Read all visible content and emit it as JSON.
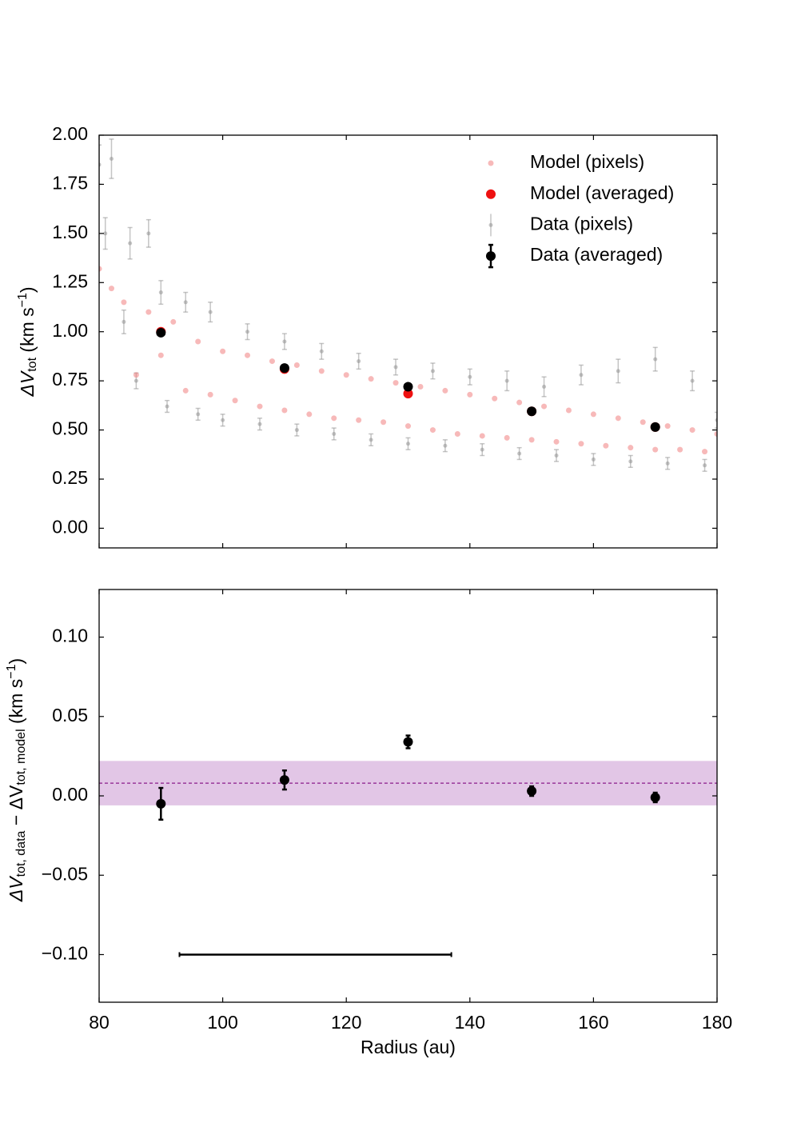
{
  "chart_data": [
    {
      "type": "scatter",
      "ylabel": {
        "main": "ΔV",
        "sub": "tot",
        "unit": " (km s",
        "sup": "−1",
        "close": ")"
      },
      "xlim": [
        80,
        180
      ],
      "ylim": [
        -0.1,
        2.0
      ],
      "xticks": [
        80,
        100,
        120,
        140,
        160,
        180
      ],
      "show_xticklabels": false,
      "yticks": [
        {
          "value": 0,
          "label": "0.00"
        },
        {
          "value": 0.25,
          "label": "0.25"
        },
        {
          "value": 0.5,
          "label": "0.50"
        },
        {
          "value": 0.75,
          "label": "0.75"
        },
        {
          "value": 1.0,
          "label": "1.00"
        },
        {
          "value": 1.25,
          "label": "1.25"
        },
        {
          "value": 1.5,
          "label": "1.50"
        },
        {
          "value": 1.75,
          "label": "1.75"
        },
        {
          "value": 2.0,
          "label": "2.00"
        }
      ],
      "legend": "upper right",
      "series": [
        {
          "name": "Model (pixels)",
          "color": "#f08080",
          "alpha": 0.55,
          "size": 3.5,
          "x": [
            80,
            82,
            84,
            86,
            88,
            90,
            92,
            94,
            96,
            98,
            100,
            102,
            104,
            106,
            108,
            110,
            112,
            114,
            116,
            118,
            120,
            122,
            124,
            126,
            128,
            130,
            132,
            134,
            136,
            138,
            140,
            142,
            144,
            146,
            148,
            150,
            152,
            154,
            156,
            158,
            160,
            162,
            164,
            166,
            168,
            170,
            172,
            174,
            176,
            178,
            180
          ],
          "values": [
            1.32,
            1.22,
            1.15,
            0.78,
            1.1,
            0.88,
            1.05,
            0.7,
            0.95,
            0.68,
            0.9,
            0.65,
            0.88,
            0.62,
            0.85,
            0.6,
            0.83,
            0.58,
            0.8,
            0.56,
            0.78,
            0.55,
            0.76,
            0.54,
            0.74,
            0.52,
            0.72,
            0.5,
            0.7,
            0.48,
            0.68,
            0.47,
            0.66,
            0.46,
            0.64,
            0.45,
            0.62,
            0.44,
            0.6,
            0.43,
            0.58,
            0.42,
            0.56,
            0.41,
            0.54,
            0.4,
            0.52,
            0.4,
            0.5,
            0.39,
            0.48
          ]
        },
        {
          "name": "Model (averaged)",
          "color": "#ee1111",
          "alpha": 1,
          "size": 6,
          "x": [
            90,
            110,
            130,
            150,
            170
          ],
          "values": [
            1.0,
            0.81,
            0.685,
            0.595,
            0.515
          ]
        },
        {
          "name": "Data (pixels)",
          "color": "#8c8c8c",
          "alpha": 0.5,
          "size": 2.5,
          "x": [
            80,
            81,
            82,
            84,
            85,
            86,
            88,
            90,
            91,
            94,
            96,
            98,
            100,
            104,
            106,
            110,
            112,
            116,
            118,
            122,
            124,
            128,
            130,
            134,
            136,
            140,
            142,
            146,
            148,
            152,
            154,
            158,
            160,
            164,
            166,
            170,
            172,
            176,
            178,
            180
          ],
          "values": [
            1.85,
            1.5,
            1.88,
            1.05,
            1.45,
            0.75,
            1.5,
            1.2,
            0.62,
            1.15,
            0.58,
            1.1,
            0.55,
            1.0,
            0.53,
            0.95,
            0.5,
            0.9,
            0.48,
            0.85,
            0.45,
            0.82,
            0.43,
            0.8,
            0.42,
            0.77,
            0.4,
            0.75,
            0.38,
            0.72,
            0.37,
            0.78,
            0.35,
            0.8,
            0.34,
            0.86,
            0.33,
            0.75,
            0.32,
            0.55
          ],
          "errors": [
            0.1,
            0.08,
            0.1,
            0.06,
            0.08,
            0.04,
            0.07,
            0.06,
            0.03,
            0.05,
            0.03,
            0.05,
            0.03,
            0.04,
            0.03,
            0.04,
            0.03,
            0.04,
            0.03,
            0.04,
            0.03,
            0.04,
            0.03,
            0.04,
            0.03,
            0.04,
            0.03,
            0.05,
            0.03,
            0.05,
            0.03,
            0.05,
            0.03,
            0.06,
            0.03,
            0.06,
            0.03,
            0.05,
            0.03,
            0.04
          ]
        },
        {
          "name": "Data (averaged)",
          "color": "#000000",
          "alpha": 1,
          "size": 6,
          "x": [
            90,
            110,
            130,
            150,
            170
          ],
          "values": [
            0.995,
            0.815,
            0.72,
            0.595,
            0.515
          ]
        }
      ]
    },
    {
      "type": "errorbar",
      "ylabel": {
        "main": "ΔV",
        "sub": "tot, data",
        "mid": " − ΔV",
        "sub2": "tot, model",
        "unit": " (km s",
        "sup": "−1",
        "close": ")"
      },
      "xlabel": "Radius (au)",
      "xlim": [
        80,
        180
      ],
      "ylim": [
        -0.13,
        0.13
      ],
      "xticks": [
        80,
        100,
        120,
        140,
        160,
        180
      ],
      "show_xticklabels": true,
      "yticks": [
        {
          "value": -0.1,
          "label": "−0.10"
        },
        {
          "value": -0.05,
          "label": "−0.05"
        },
        {
          "value": 0,
          "label": "0.00"
        },
        {
          "value": 0.05,
          "label": "0.05"
        },
        {
          "value": 0.1,
          "label": "0.10"
        }
      ],
      "x": [
        90,
        110,
        130,
        150,
        170
      ],
      "values": [
        -0.005,
        0.01,
        0.034,
        0.003,
        -0.001
      ],
      "errors": [
        0.01,
        0.006,
        0.004,
        0.003,
        0.003
      ],
      "color": "#000000",
      "hline": 0.008,
      "hline_color": "#8b1a8b",
      "band": [
        -0.006,
        0.022
      ],
      "band_color": "#e2c6e6",
      "beam": {
        "x": [
          93,
          137
        ],
        "y": -0.1
      }
    }
  ]
}
